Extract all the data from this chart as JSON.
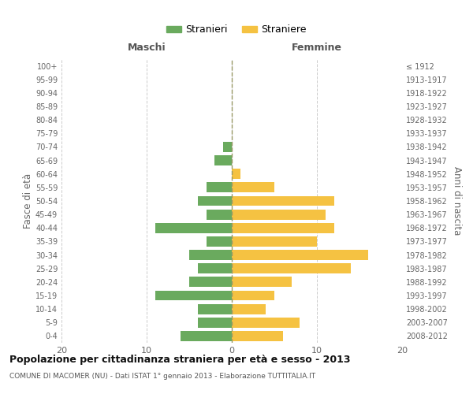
{
  "age_groups": [
    "0-4",
    "5-9",
    "10-14",
    "15-19",
    "20-24",
    "25-29",
    "30-34",
    "35-39",
    "40-44",
    "45-49",
    "50-54",
    "55-59",
    "60-64",
    "65-69",
    "70-74",
    "75-79",
    "80-84",
    "85-89",
    "90-94",
    "95-99",
    "100+"
  ],
  "birth_years": [
    "2008-2012",
    "2003-2007",
    "1998-2002",
    "1993-1997",
    "1988-1992",
    "1983-1987",
    "1978-1982",
    "1973-1977",
    "1968-1972",
    "1963-1967",
    "1958-1962",
    "1953-1957",
    "1948-1952",
    "1943-1947",
    "1938-1942",
    "1933-1937",
    "1928-1932",
    "1923-1927",
    "1918-1922",
    "1913-1917",
    "≤ 1912"
  ],
  "maschi": [
    6,
    4,
    4,
    9,
    5,
    4,
    5,
    3,
    9,
    3,
    4,
    3,
    0,
    2,
    1,
    0,
    0,
    0,
    0,
    0,
    0
  ],
  "femmine": [
    6,
    8,
    4,
    5,
    7,
    14,
    16,
    10,
    12,
    11,
    12,
    5,
    1,
    0,
    0,
    0,
    0,
    0,
    0,
    0,
    0
  ],
  "male_color": "#6aaa5e",
  "female_color": "#f5c242",
  "title": "Popolazione per cittadinanza straniera per età e sesso - 2013",
  "subtitle": "COMUNE DI MACOMER (NU) - Dati ISTAT 1° gennaio 2013 - Elaborazione TUTTITALIA.IT",
  "xlabel_left": "Maschi",
  "xlabel_right": "Femmine",
  "ylabel_left": "Fasce di età",
  "ylabel_right": "Anni di nascita",
  "legend_male": "Stranieri",
  "legend_female": "Straniere",
  "xlim": 20,
  "background_color": "#ffffff",
  "grid_color": "#cccccc",
  "bar_height": 0.75
}
